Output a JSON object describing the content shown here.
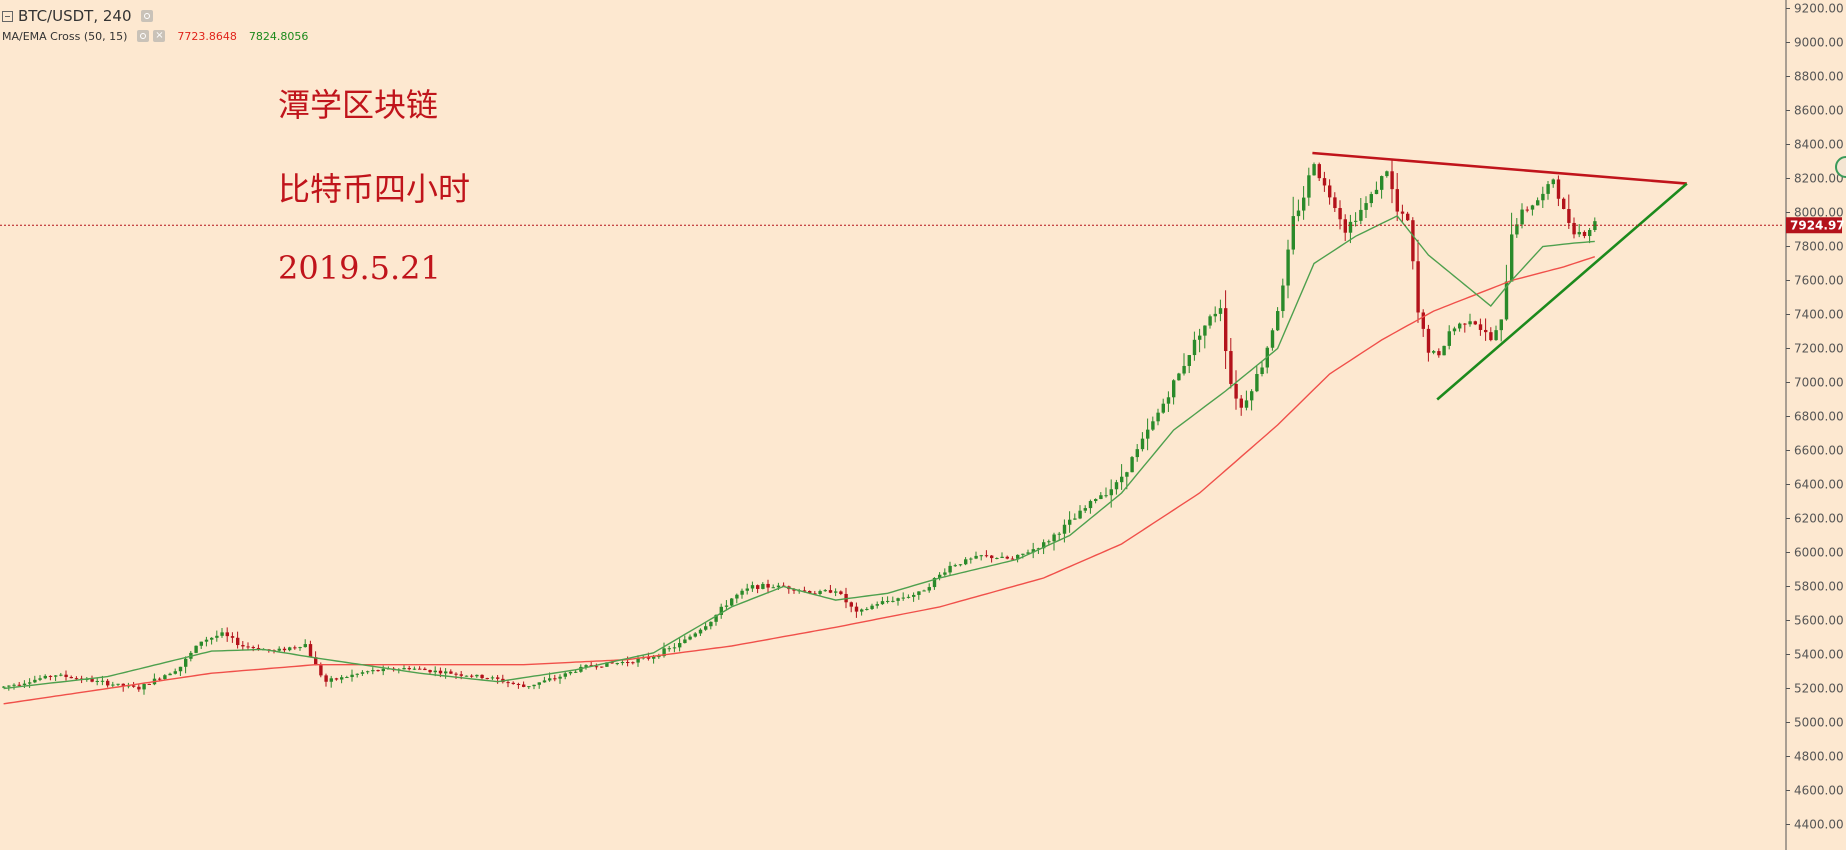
{
  "header": {
    "symbol": "BTC/USDT, 240",
    "indicator_name": "MA/EMA Cross (50, 15)",
    "indicator_value_1": "7723.8648",
    "indicator_value_2": "7824.8056"
  },
  "annotations": {
    "line1": "潭学区块链",
    "line2": "比特币四小时",
    "line3": "2019.5.21"
  },
  "current_price_label": "7924.97",
  "colors": {
    "background": "#fde8d0",
    "up": "#2a8a2a",
    "down": "#b3121b",
    "ma_slow": "#f0504a",
    "ma_fast": "#4ea04e",
    "text_red": "#c0141b"
  },
  "chart_data": {
    "type": "candlestick",
    "title": "BTC/USDT, 240",
    "ylim": [
      4250,
      9250
    ],
    "y_ticks": [
      "4400.00",
      "4600.00",
      "4800.00",
      "5000.00",
      "5200.00",
      "5400.00",
      "5600.00",
      "5800.00",
      "6000.00",
      "6200.00",
      "6400.00",
      "6600.00",
      "6800.00",
      "7000.00",
      "7200.00",
      "7400.00",
      "7600.00",
      "7800.00",
      "8000.00",
      "8200.00",
      "8400.00",
      "8600.00",
      "8800.00",
      "9000.00",
      "9200.00"
    ],
    "current_price": 7924.97,
    "ohlc_anchors": [
      [
        0,
        5210
      ],
      [
        10,
        5280
      ],
      [
        18,
        5240
      ],
      [
        26,
        5200
      ],
      [
        34,
        5330
      ],
      [
        38,
        5480
      ],
      [
        42,
        5520
      ],
      [
        46,
        5450
      ],
      [
        52,
        5420
      ],
      [
        58,
        5460
      ],
      [
        60,
        5330
      ],
      [
        62,
        5240
      ],
      [
        70,
        5300
      ],
      [
        78,
        5320
      ],
      [
        86,
        5290
      ],
      [
        94,
        5260
      ],
      [
        100,
        5210
      ],
      [
        106,
        5260
      ],
      [
        112,
        5330
      ],
      [
        118,
        5350
      ],
      [
        124,
        5380
      ],
      [
        130,
        5460
      ],
      [
        136,
        5600
      ],
      [
        140,
        5730
      ],
      [
        144,
        5800
      ],
      [
        150,
        5800
      ],
      [
        156,
        5760
      ],
      [
        160,
        5780
      ],
      [
        164,
        5640
      ],
      [
        168,
        5700
      ],
      [
        176,
        5760
      ],
      [
        182,
        5920
      ],
      [
        188,
        5980
      ],
      [
        194,
        5960
      ],
      [
        200,
        6050
      ],
      [
        206,
        6200
      ],
      [
        210,
        6320
      ],
      [
        214,
        6400
      ],
      [
        218,
        6600
      ],
      [
        222,
        6820
      ],
      [
        226,
        7050
      ],
      [
        230,
        7300
      ],
      [
        234,
        7450
      ],
      [
        236,
        7000
      ],
      [
        238,
        6850
      ],
      [
        242,
        7100
      ],
      [
        246,
        7550
      ],
      [
        248,
        7950
      ],
      [
        250,
        8100
      ],
      [
        252,
        8300
      ],
      [
        254,
        8150
      ],
      [
        256,
        8050
      ],
      [
        258,
        7900
      ],
      [
        262,
        8050
      ],
      [
        266,
        8250
      ],
      [
        268,
        8000
      ],
      [
        270,
        7950
      ],
      [
        272,
        7400
      ],
      [
        274,
        7200
      ],
      [
        276,
        7150
      ],
      [
        278,
        7300
      ],
      [
        282,
        7380
      ],
      [
        286,
        7250
      ],
      [
        288,
        7350
      ],
      [
        290,
        7900
      ],
      [
        292,
        8000
      ],
      [
        296,
        8100
      ],
      [
        298,
        8200
      ],
      [
        300,
        8000
      ],
      [
        302,
        7900
      ],
      [
        304,
        7870
      ],
      [
        306,
        7940
      ]
    ],
    "ma_slow": [
      [
        0,
        5110
      ],
      [
        20,
        5200
      ],
      [
        40,
        5290
      ],
      [
        60,
        5340
      ],
      [
        80,
        5340
      ],
      [
        100,
        5340
      ],
      [
        120,
        5370
      ],
      [
        140,
        5450
      ],
      [
        160,
        5560
      ],
      [
        180,
        5680
      ],
      [
        200,
        5850
      ],
      [
        215,
        6050
      ],
      [
        230,
        6350
      ],
      [
        245,
        6750
      ],
      [
        255,
        7050
      ],
      [
        265,
        7250
      ],
      [
        275,
        7420
      ],
      [
        290,
        7600
      ],
      [
        300,
        7680
      ],
      [
        306,
        7740
      ]
    ],
    "ma_fast": [
      [
        0,
        5200
      ],
      [
        20,
        5270
      ],
      [
        40,
        5420
      ],
      [
        50,
        5430
      ],
      [
        60,
        5380
      ],
      [
        80,
        5290
      ],
      [
        95,
        5240
      ],
      [
        110,
        5310
      ],
      [
        125,
        5410
      ],
      [
        140,
        5680
      ],
      [
        150,
        5800
      ],
      [
        160,
        5720
      ],
      [
        170,
        5760
      ],
      [
        180,
        5850
      ],
      [
        195,
        5960
      ],
      [
        205,
        6100
      ],
      [
        215,
        6350
      ],
      [
        225,
        6720
      ],
      [
        235,
        6950
      ],
      [
        245,
        7200
      ],
      [
        252,
        7700
      ],
      [
        260,
        7860
      ],
      [
        268,
        7980
      ],
      [
        274,
        7750
      ],
      [
        280,
        7600
      ],
      [
        286,
        7450
      ],
      [
        290,
        7600
      ],
      [
        296,
        7800
      ],
      [
        302,
        7820
      ],
      [
        306,
        7830
      ]
    ],
    "trendlines": [
      {
        "name": "resistance",
        "from": [
          252,
          8350
        ],
        "to": [
          324,
          8170
        ],
        "color": "#c0141b"
      },
      {
        "name": "support",
        "from": [
          276,
          6900
        ],
        "to": [
          324,
          8170
        ],
        "color": "#1c8a1c"
      }
    ],
    "n_bars": 307
  }
}
